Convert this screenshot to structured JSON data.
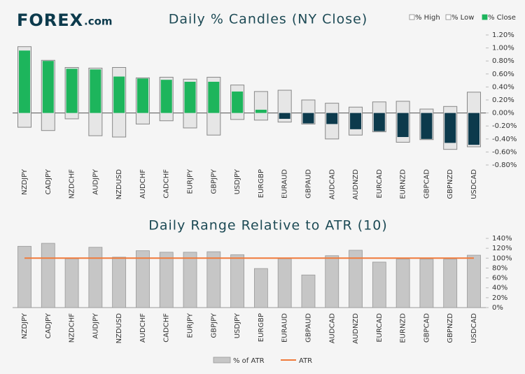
{
  "logo": {
    "name": "FOREX",
    "domain": ".com"
  },
  "chart_data": [
    {
      "type": "candle",
      "title": "Daily % Candles (NY Close)",
      "categories": [
        "NZDJPY",
        "CADJPY",
        "NZDCHF",
        "AUDJPY",
        "NZDUSD",
        "AUDCHF",
        "CADCHF",
        "EURJPY",
        "GBPJPY",
        "USDJPY",
        "EURGBP",
        "EURAUD",
        "GBPAUD",
        "AUDCAD",
        "AUDNZD",
        "EURCAD",
        "EURNZD",
        "GBPCAD",
        "GBPNZD",
        "USDCAD"
      ],
      "series": [
        {
          "name": "% High",
          "color": "#e6e6e6",
          "values": [
            1.02,
            0.81,
            0.7,
            0.69,
            0.7,
            0.54,
            0.55,
            0.52,
            0.55,
            0.43,
            0.33,
            0.35,
            0.2,
            0.15,
            0.09,
            0.17,
            0.18,
            0.06,
            0.1,
            0.32
          ]
        },
        {
          "name": "% Low",
          "color": "#e6e6e6",
          "values": [
            -0.22,
            -0.27,
            -0.09,
            -0.35,
            -0.37,
            -0.17,
            -0.12,
            -0.23,
            -0.34,
            -0.1,
            -0.11,
            -0.14,
            -0.17,
            -0.4,
            -0.34,
            -0.29,
            -0.45,
            -0.41,
            -0.56,
            -0.52
          ]
        },
        {
          "name": "% Close",
          "color": "#1db55c",
          "negative_color": "#0c3a4c",
          "values": [
            0.96,
            0.8,
            0.68,
            0.67,
            0.56,
            0.53,
            0.51,
            0.48,
            0.48,
            0.33,
            0.05,
            -0.09,
            -0.16,
            -0.17,
            -0.25,
            -0.28,
            -0.37,
            -0.4,
            -0.46,
            -0.49
          ]
        }
      ],
      "ylim": [
        -0.8,
        1.2
      ],
      "yticks": [
        {
          "value": 1.2,
          "label": "1.20%"
        },
        {
          "value": 1.0,
          "label": "1.00%"
        },
        {
          "value": 0.8,
          "label": "0.80%"
        },
        {
          "value": 0.6,
          "label": "0.60%"
        },
        {
          "value": 0.4,
          "label": "0.40%"
        },
        {
          "value": 0.2,
          "label": "0.20%"
        },
        {
          "value": 0,
          "label": "0.00%"
        },
        {
          "value": -0.2,
          "label": "-0.20%"
        },
        {
          "value": -0.4,
          "label": "-0.40%"
        },
        {
          "value": -0.6,
          "label": "-0.60%"
        },
        {
          "value": -0.8,
          "label": "-0.80%"
        }
      ],
      "legend": "top-right"
    },
    {
      "type": "bar",
      "title": "Daily Range Relative to ATR (10)",
      "categories": [
        "NZDJPY",
        "CADJPY",
        "NZDCHF",
        "AUDJPY",
        "NZDUSD",
        "AUDCHF",
        "CADCHF",
        "EURJPY",
        "GBPJPY",
        "USDJPY",
        "EURGBP",
        "EURAUD",
        "GBPAUD",
        "AUDCAD",
        "AUDNZD",
        "EURCAD",
        "EURNZD",
        "GBPCAD",
        "GBPNZD",
        "USDCAD"
      ],
      "series": [
        {
          "name": "% of ATR",
          "color": "#c6c6c6",
          "values": [
            124,
            130,
            99,
            122,
            102,
            115,
            112,
            112,
            113,
            107,
            79,
            99,
            66,
            105,
            116,
            92,
            98,
            98,
            98,
            106
          ]
        }
      ],
      "reference_line": {
        "name": "ATR",
        "value": 100,
        "color": "#f07a3a"
      },
      "ylim": [
        0,
        140
      ],
      "yticks": [
        {
          "value": 140,
          "label": "140%"
        },
        {
          "value": 120,
          "label": "120%"
        },
        {
          "value": 100,
          "label": "100%"
        },
        {
          "value": 80,
          "label": "80%"
        },
        {
          "value": 60,
          "label": "60%"
        },
        {
          "value": 40,
          "label": "40%"
        },
        {
          "value": 20,
          "label": "20%"
        },
        {
          "value": 0,
          "label": "0%"
        }
      ],
      "legend": "bottom"
    }
  ]
}
